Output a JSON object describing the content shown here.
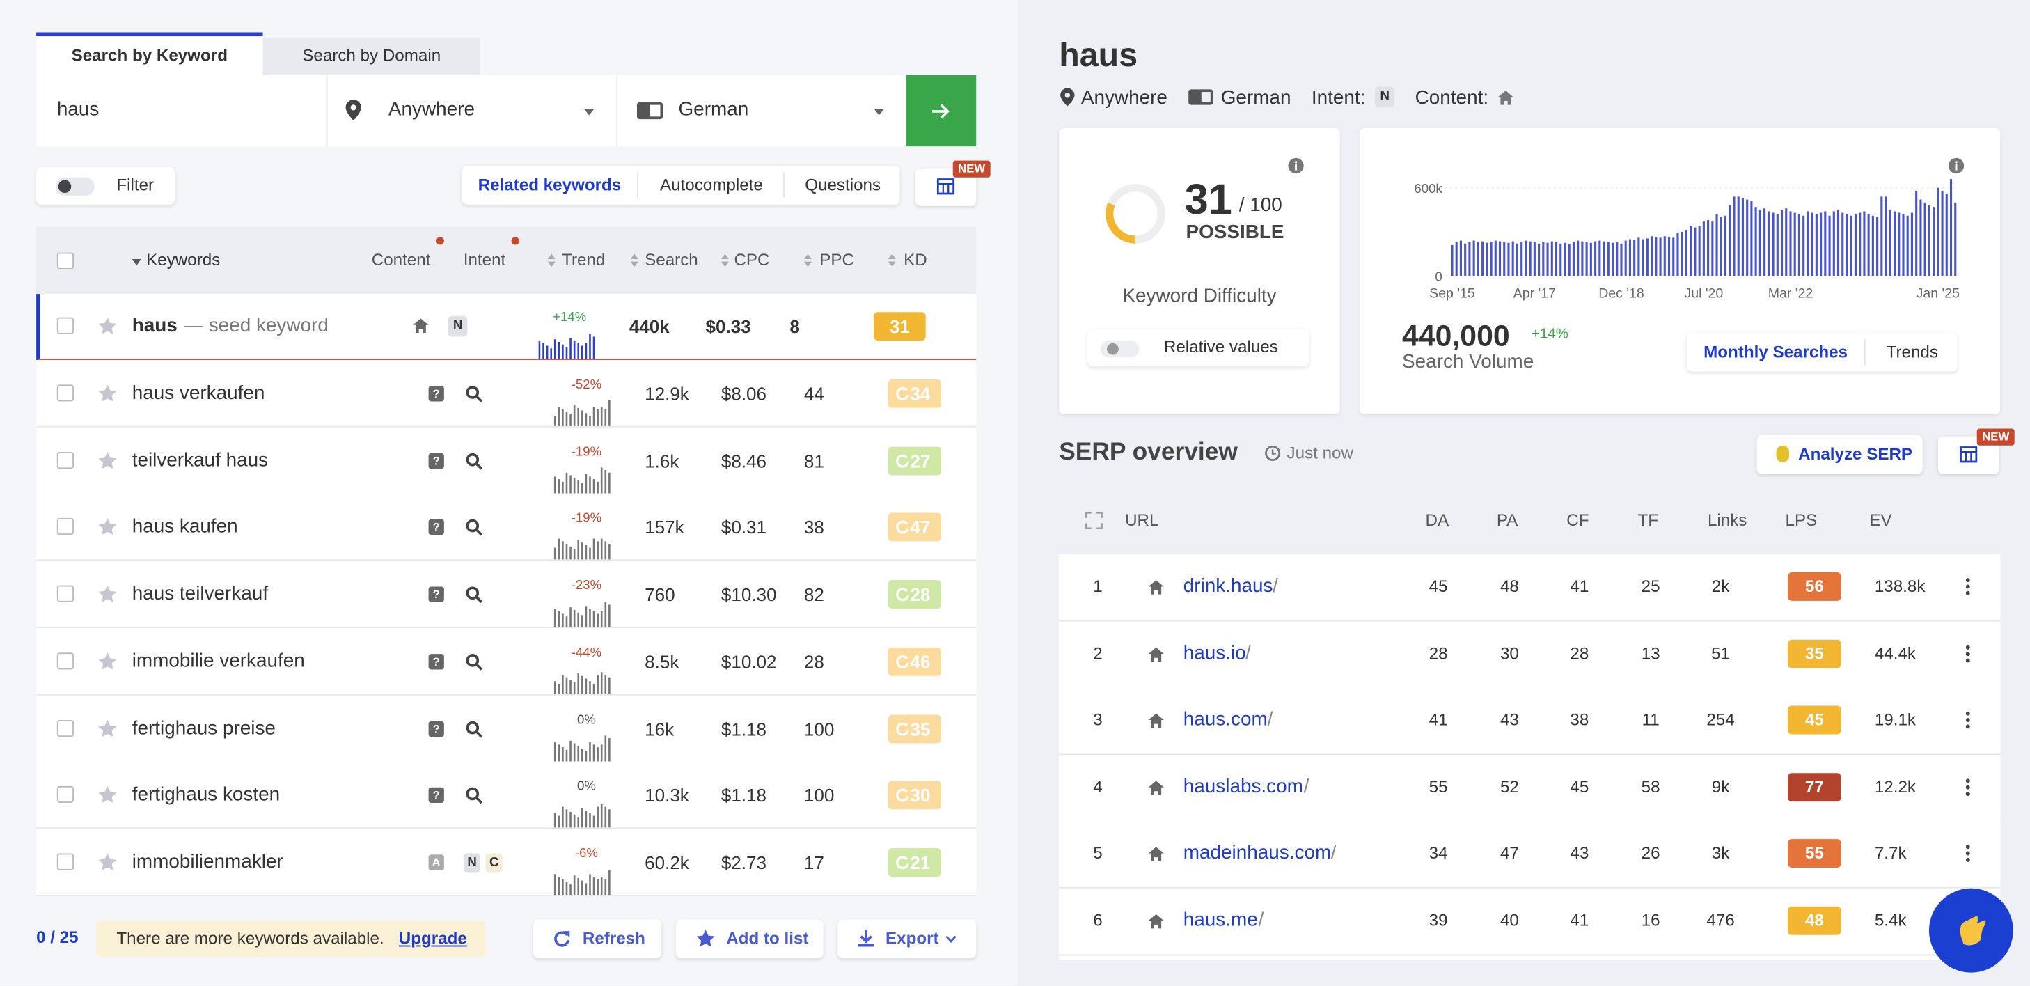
{
  "search_tabs": [
    "Search by Keyword",
    "Search by Domain"
  ],
  "search": {
    "keyword": "haus",
    "location": "Anywhere",
    "language": "German"
  },
  "filter_label": "Filter",
  "keyword_tabs": [
    "Related keywords",
    "Autocomplete",
    "Questions"
  ],
  "new_badge": "NEW",
  "keywords_table": {
    "headers": {
      "keywords": "Keywords",
      "content": "Content",
      "intent": "Intent",
      "trend": "Trend",
      "search": "Search",
      "cpc": "CPC",
      "ppc": "PPC",
      "kd": "KD"
    },
    "seed": {
      "keyword": "haus",
      "note": "— seed keyword",
      "intent": [
        "N"
      ],
      "trend": "+14%",
      "search": "440k",
      "cpc": "$0.33",
      "ppc": 8,
      "kd": 31
    },
    "rows": [
      {
        "keyword": "haus verkaufen",
        "content": "?",
        "intent": [],
        "trend": "-52%",
        "search": "12.9k",
        "cpc": "$8.06",
        "ppc": 44,
        "kd": 34
      },
      {
        "keyword": "teilverkauf haus",
        "content": "?",
        "intent": [],
        "trend": "-19%",
        "search": "1.6k",
        "cpc": "$8.46",
        "ppc": 81,
        "kd": 27
      },
      {
        "keyword": "haus kaufen",
        "content": "?",
        "intent": [],
        "trend": "-19%",
        "search": "157k",
        "cpc": "$0.31",
        "ppc": 38,
        "kd": 47
      },
      {
        "keyword": "haus teilverkauf",
        "content": "?",
        "intent": [],
        "trend": "-23%",
        "search": "760",
        "cpc": "$10.30",
        "ppc": 82,
        "kd": 28
      },
      {
        "keyword": "immobilie verkaufen",
        "content": "?",
        "intent": [],
        "trend": "-44%",
        "search": "8.5k",
        "cpc": "$10.02",
        "ppc": 28,
        "kd": 46
      },
      {
        "keyword": "fertighaus preise",
        "content": "?",
        "intent": [],
        "trend": "0%",
        "search": "16k",
        "cpc": "$1.18",
        "ppc": 100,
        "kd": 35
      },
      {
        "keyword": "fertighaus kosten",
        "content": "?",
        "intent": [],
        "trend": "0%",
        "search": "10.3k",
        "cpc": "$1.18",
        "ppc": 100,
        "kd": 30
      },
      {
        "keyword": "immobilienmakler",
        "content": "A",
        "intent": [
          "N",
          "C"
        ],
        "trend": "-6%",
        "search": "60.2k",
        "cpc": "$2.73",
        "ppc": 17,
        "kd": 21
      }
    ]
  },
  "footer": {
    "count": "0 / 25",
    "notice": "There are more keywords available.",
    "upgrade": "Upgrade",
    "refresh": "Refresh",
    "add_to_list": "Add to list",
    "export": "Export"
  },
  "overview": {
    "keyword": "haus",
    "location": "Anywhere",
    "language": "German",
    "intent_label": "Intent:",
    "intent": "N",
    "content_label": "Content:"
  },
  "difficulty": {
    "score": 31,
    "max": "/ 100",
    "verdict": "POSSIBLE",
    "label": "Keyword Difficulty",
    "toggle": "Relative values"
  },
  "volume": {
    "total": "440,000",
    "change": "+14%",
    "label": "Search Volume",
    "tabs": [
      "Monthly Searches",
      "Trends"
    ]
  },
  "chart_data": {
    "type": "bar",
    "color": "#4a55c9",
    "ylim": [
      0,
      700000
    ],
    "yticks": [
      {
        "value": 0,
        "label": "0"
      },
      {
        "value": 600000,
        "label": "600k"
      }
    ],
    "xticks": [
      {
        "value": 0,
        "label": "Sep '15"
      },
      {
        "value": 19,
        "label": "Apr '17"
      },
      {
        "value": 39,
        "label": "Dec '18"
      },
      {
        "value": 58,
        "label": "Jul '20"
      },
      {
        "value": 78,
        "label": "Mar '22"
      },
      {
        "value": 112,
        "label": "Jan '25"
      }
    ],
    "values": [
      210000,
      230000,
      240000,
      220000,
      230000,
      240000,
      230000,
      235000,
      225000,
      230000,
      240000,
      235000,
      230000,
      225000,
      235000,
      220000,
      230000,
      240000,
      235000,
      230000,
      220000,
      230000,
      225000,
      235000,
      230000,
      220000,
      225000,
      215000,
      230000,
      240000,
      235000,
      230000,
      225000,
      235000,
      240000,
      235000,
      230000,
      225000,
      230000,
      220000,
      240000,
      250000,
      245000,
      260000,
      250000,
      255000,
      270000,
      265000,
      260000,
      270000,
      265000,
      260000,
      290000,
      300000,
      310000,
      340000,
      330000,
      340000,
      370000,
      380000,
      370000,
      420000,
      400000,
      410000,
      480000,
      540000,
      540000,
      530000,
      520000,
      510000,
      470000,
      450000,
      460000,
      440000,
      430000,
      420000,
      450000,
      460000,
      440000,
      430000,
      420000,
      410000,
      440000,
      430000,
      420000,
      430000,
      440000,
      410000,
      440000,
      450000,
      430000,
      420000,
      410000,
      420000,
      430000,
      440000,
      420000,
      410000,
      400000,
      540000,
      540000,
      450000,
      440000,
      430000,
      420000,
      410000,
      430000,
      580000,
      520000,
      500000,
      480000,
      470000,
      600000,
      580000,
      560000,
      660000,
      500000
    ]
  },
  "serp": {
    "title": "SERP overview",
    "time": "Just now",
    "analyze": "Analyze SERP",
    "new_badge": "NEW",
    "headers": {
      "url": "URL",
      "da": "DA",
      "pa": "PA",
      "cf": "CF",
      "tf": "TF",
      "links": "Links",
      "lps": "LPS",
      "ev": "EV"
    },
    "rows": [
      {
        "rank": 1,
        "domain": "drink.haus",
        "path": "/",
        "da": 45,
        "pa": 48,
        "cf": 41,
        "tf": 25,
        "links": "2k",
        "lps": 56,
        "ev": "138.8k"
      },
      {
        "rank": 2,
        "domain": "haus.io",
        "path": "/",
        "da": 28,
        "pa": 30,
        "cf": 28,
        "tf": 13,
        "links": "51",
        "lps": 35,
        "ev": "44.4k"
      },
      {
        "rank": 3,
        "domain": "haus.com",
        "path": "/",
        "da": 41,
        "pa": 43,
        "cf": 38,
        "tf": 11,
        "links": "254",
        "lps": 45,
        "ev": "19.1k"
      },
      {
        "rank": 4,
        "domain": "hauslabs.com",
        "path": "/",
        "da": 55,
        "pa": 52,
        "cf": 45,
        "tf": 58,
        "links": "9k",
        "lps": 77,
        "ev": "12.2k"
      },
      {
        "rank": 5,
        "domain": "madeinhaus.com",
        "path": "/",
        "da": 34,
        "pa": 47,
        "cf": 43,
        "tf": 26,
        "links": "3k",
        "lps": 55,
        "ev": "7.7k"
      },
      {
        "rank": 6,
        "domain": "haus.me",
        "path": "/",
        "da": 39,
        "pa": 40,
        "cf": 41,
        "tf": 16,
        "links": "476",
        "lps": 48,
        "ev": "5.4k"
      }
    ]
  }
}
